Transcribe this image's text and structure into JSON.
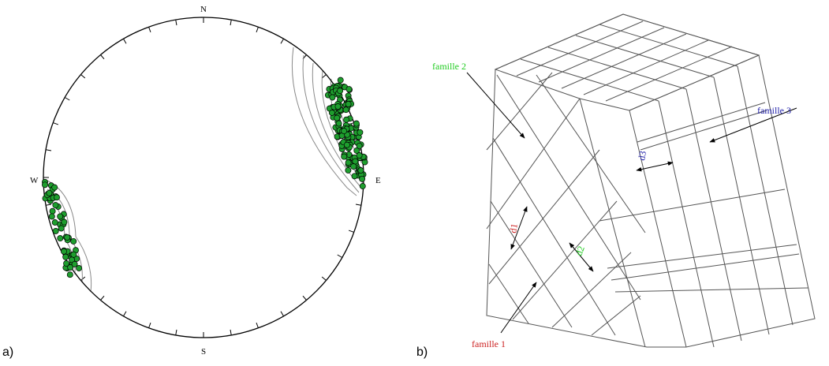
{
  "panels": {
    "a": {
      "label": "a)",
      "directions": {
        "north": "N",
        "south": "S",
        "east": "E",
        "west": "W"
      },
      "pole_color": "#1e9e2e",
      "contour_color": "#8a8a8a"
    },
    "b": {
      "label": "b)",
      "families": [
        {
          "name": "famille 1",
          "color": "#cc2222"
        },
        {
          "name": "famille 2",
          "color": "#22cc22"
        },
        {
          "name": "famille 3",
          "color": "#2222aa"
        }
      ],
      "spacings": [
        {
          "name": "d1",
          "color": "#cc2222"
        },
        {
          "name": "d2",
          "color": "#22cc22"
        },
        {
          "name": "d3",
          "color": "#2222aa"
        }
      ]
    }
  }
}
